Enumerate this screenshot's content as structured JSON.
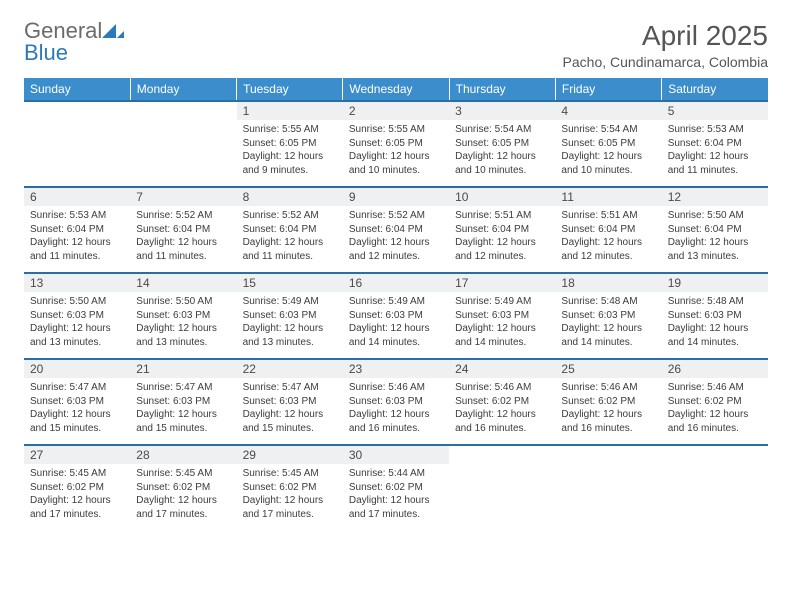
{
  "brand": {
    "word1": "General",
    "word2": "Blue"
  },
  "title": "April 2025",
  "location": "Pacho, Cundinamarca, Colombia",
  "colors": {
    "header_bg": "#3c8dcc",
    "row_border": "#2a6ea6",
    "daynum_bg": "#eef0f2",
    "text": "#333333",
    "title_text": "#555555",
    "brand_gray": "#6b6b6b",
    "brand_blue": "#2a7ab9",
    "background": "#ffffff"
  },
  "typography": {
    "title_fontsize": 28,
    "location_fontsize": 14,
    "header_fontsize": 12,
    "daynum_fontsize": 12,
    "body_fontsize": 10
  },
  "weekdays": [
    "Sunday",
    "Monday",
    "Tuesday",
    "Wednesday",
    "Thursday",
    "Friday",
    "Saturday"
  ],
  "weeks": [
    [
      {
        "day": "",
        "sunrise": "",
        "sunset": "",
        "daylight": "",
        "empty": true
      },
      {
        "day": "",
        "sunrise": "",
        "sunset": "",
        "daylight": "",
        "empty": true
      },
      {
        "day": "1",
        "sunrise": "Sunrise: 5:55 AM",
        "sunset": "Sunset: 6:05 PM",
        "daylight": "Daylight: 12 hours and 9 minutes."
      },
      {
        "day": "2",
        "sunrise": "Sunrise: 5:55 AM",
        "sunset": "Sunset: 6:05 PM",
        "daylight": "Daylight: 12 hours and 10 minutes."
      },
      {
        "day": "3",
        "sunrise": "Sunrise: 5:54 AM",
        "sunset": "Sunset: 6:05 PM",
        "daylight": "Daylight: 12 hours and 10 minutes."
      },
      {
        "day": "4",
        "sunrise": "Sunrise: 5:54 AM",
        "sunset": "Sunset: 6:05 PM",
        "daylight": "Daylight: 12 hours and 10 minutes."
      },
      {
        "day": "5",
        "sunrise": "Sunrise: 5:53 AM",
        "sunset": "Sunset: 6:04 PM",
        "daylight": "Daylight: 12 hours and 11 minutes."
      }
    ],
    [
      {
        "day": "6",
        "sunrise": "Sunrise: 5:53 AM",
        "sunset": "Sunset: 6:04 PM",
        "daylight": "Daylight: 12 hours and 11 minutes."
      },
      {
        "day": "7",
        "sunrise": "Sunrise: 5:52 AM",
        "sunset": "Sunset: 6:04 PM",
        "daylight": "Daylight: 12 hours and 11 minutes."
      },
      {
        "day": "8",
        "sunrise": "Sunrise: 5:52 AM",
        "sunset": "Sunset: 6:04 PM",
        "daylight": "Daylight: 12 hours and 11 minutes."
      },
      {
        "day": "9",
        "sunrise": "Sunrise: 5:52 AM",
        "sunset": "Sunset: 6:04 PM",
        "daylight": "Daylight: 12 hours and 12 minutes."
      },
      {
        "day": "10",
        "sunrise": "Sunrise: 5:51 AM",
        "sunset": "Sunset: 6:04 PM",
        "daylight": "Daylight: 12 hours and 12 minutes."
      },
      {
        "day": "11",
        "sunrise": "Sunrise: 5:51 AM",
        "sunset": "Sunset: 6:04 PM",
        "daylight": "Daylight: 12 hours and 12 minutes."
      },
      {
        "day": "12",
        "sunrise": "Sunrise: 5:50 AM",
        "sunset": "Sunset: 6:04 PM",
        "daylight": "Daylight: 12 hours and 13 minutes."
      }
    ],
    [
      {
        "day": "13",
        "sunrise": "Sunrise: 5:50 AM",
        "sunset": "Sunset: 6:03 PM",
        "daylight": "Daylight: 12 hours and 13 minutes."
      },
      {
        "day": "14",
        "sunrise": "Sunrise: 5:50 AM",
        "sunset": "Sunset: 6:03 PM",
        "daylight": "Daylight: 12 hours and 13 minutes."
      },
      {
        "day": "15",
        "sunrise": "Sunrise: 5:49 AM",
        "sunset": "Sunset: 6:03 PM",
        "daylight": "Daylight: 12 hours and 13 minutes."
      },
      {
        "day": "16",
        "sunrise": "Sunrise: 5:49 AM",
        "sunset": "Sunset: 6:03 PM",
        "daylight": "Daylight: 12 hours and 14 minutes."
      },
      {
        "day": "17",
        "sunrise": "Sunrise: 5:49 AM",
        "sunset": "Sunset: 6:03 PM",
        "daylight": "Daylight: 12 hours and 14 minutes."
      },
      {
        "day": "18",
        "sunrise": "Sunrise: 5:48 AM",
        "sunset": "Sunset: 6:03 PM",
        "daylight": "Daylight: 12 hours and 14 minutes."
      },
      {
        "day": "19",
        "sunrise": "Sunrise: 5:48 AM",
        "sunset": "Sunset: 6:03 PM",
        "daylight": "Daylight: 12 hours and 14 minutes."
      }
    ],
    [
      {
        "day": "20",
        "sunrise": "Sunrise: 5:47 AM",
        "sunset": "Sunset: 6:03 PM",
        "daylight": "Daylight: 12 hours and 15 minutes."
      },
      {
        "day": "21",
        "sunrise": "Sunrise: 5:47 AM",
        "sunset": "Sunset: 6:03 PM",
        "daylight": "Daylight: 12 hours and 15 minutes."
      },
      {
        "day": "22",
        "sunrise": "Sunrise: 5:47 AM",
        "sunset": "Sunset: 6:03 PM",
        "daylight": "Daylight: 12 hours and 15 minutes."
      },
      {
        "day": "23",
        "sunrise": "Sunrise: 5:46 AM",
        "sunset": "Sunset: 6:03 PM",
        "daylight": "Daylight: 12 hours and 16 minutes."
      },
      {
        "day": "24",
        "sunrise": "Sunrise: 5:46 AM",
        "sunset": "Sunset: 6:02 PM",
        "daylight": "Daylight: 12 hours and 16 minutes."
      },
      {
        "day": "25",
        "sunrise": "Sunrise: 5:46 AM",
        "sunset": "Sunset: 6:02 PM",
        "daylight": "Daylight: 12 hours and 16 minutes."
      },
      {
        "day": "26",
        "sunrise": "Sunrise: 5:46 AM",
        "sunset": "Sunset: 6:02 PM",
        "daylight": "Daylight: 12 hours and 16 minutes."
      }
    ],
    [
      {
        "day": "27",
        "sunrise": "Sunrise: 5:45 AM",
        "sunset": "Sunset: 6:02 PM",
        "daylight": "Daylight: 12 hours and 17 minutes."
      },
      {
        "day": "28",
        "sunrise": "Sunrise: 5:45 AM",
        "sunset": "Sunset: 6:02 PM",
        "daylight": "Daylight: 12 hours and 17 minutes."
      },
      {
        "day": "29",
        "sunrise": "Sunrise: 5:45 AM",
        "sunset": "Sunset: 6:02 PM",
        "daylight": "Daylight: 12 hours and 17 minutes."
      },
      {
        "day": "30",
        "sunrise": "Sunrise: 5:44 AM",
        "sunset": "Sunset: 6:02 PM",
        "daylight": "Daylight: 12 hours and 17 minutes."
      },
      {
        "day": "",
        "sunrise": "",
        "sunset": "",
        "daylight": "",
        "empty": true
      },
      {
        "day": "",
        "sunrise": "",
        "sunset": "",
        "daylight": "",
        "empty": true
      },
      {
        "day": "",
        "sunrise": "",
        "sunset": "",
        "daylight": "",
        "empty": true
      }
    ]
  ]
}
